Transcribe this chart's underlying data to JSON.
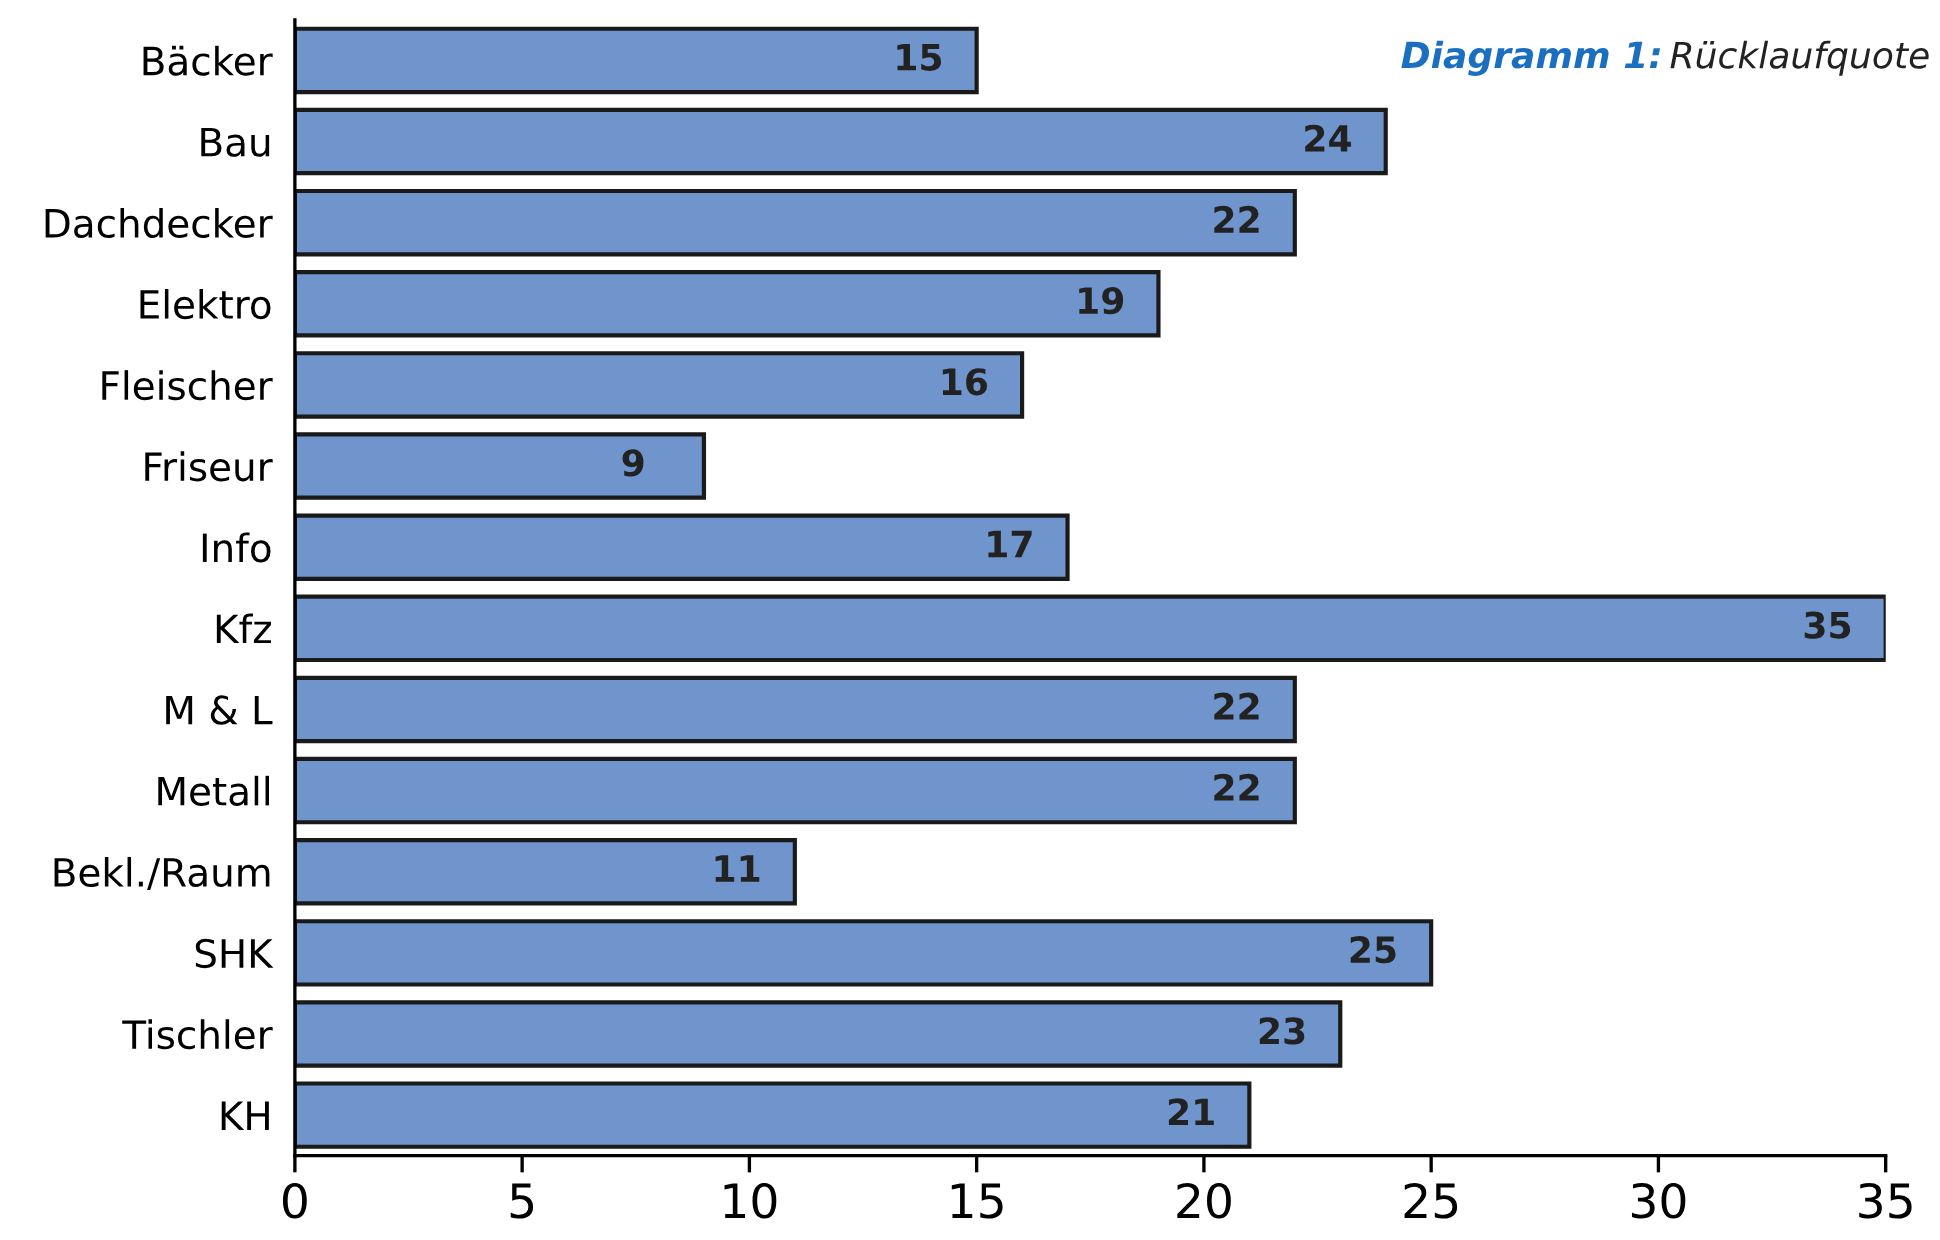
{
  "chart_data": {
    "type": "bar",
    "orientation": "horizontal",
    "title": "Diagramm 1:",
    "subtitle": "Rücklaufquote",
    "categories": [
      "Bäcker",
      "Bau",
      "Dachdecker",
      "Elektro",
      "Fleischer",
      "Friseur",
      "Info",
      "Kfz",
      "M & L",
      "Metall",
      "Bekl./Raum",
      "SHK",
      "Tischler",
      "KH"
    ],
    "values": [
      15,
      24,
      22,
      19,
      16,
      9,
      17,
      35,
      22,
      22,
      11,
      25,
      23,
      21
    ],
    "color": "#6f95cc",
    "xlim": [
      0,
      35
    ],
    "xticks": [
      0,
      5,
      10,
      15,
      20,
      25,
      30,
      35
    ],
    "data_labels": true,
    "grid": false,
    "legend": false
  }
}
